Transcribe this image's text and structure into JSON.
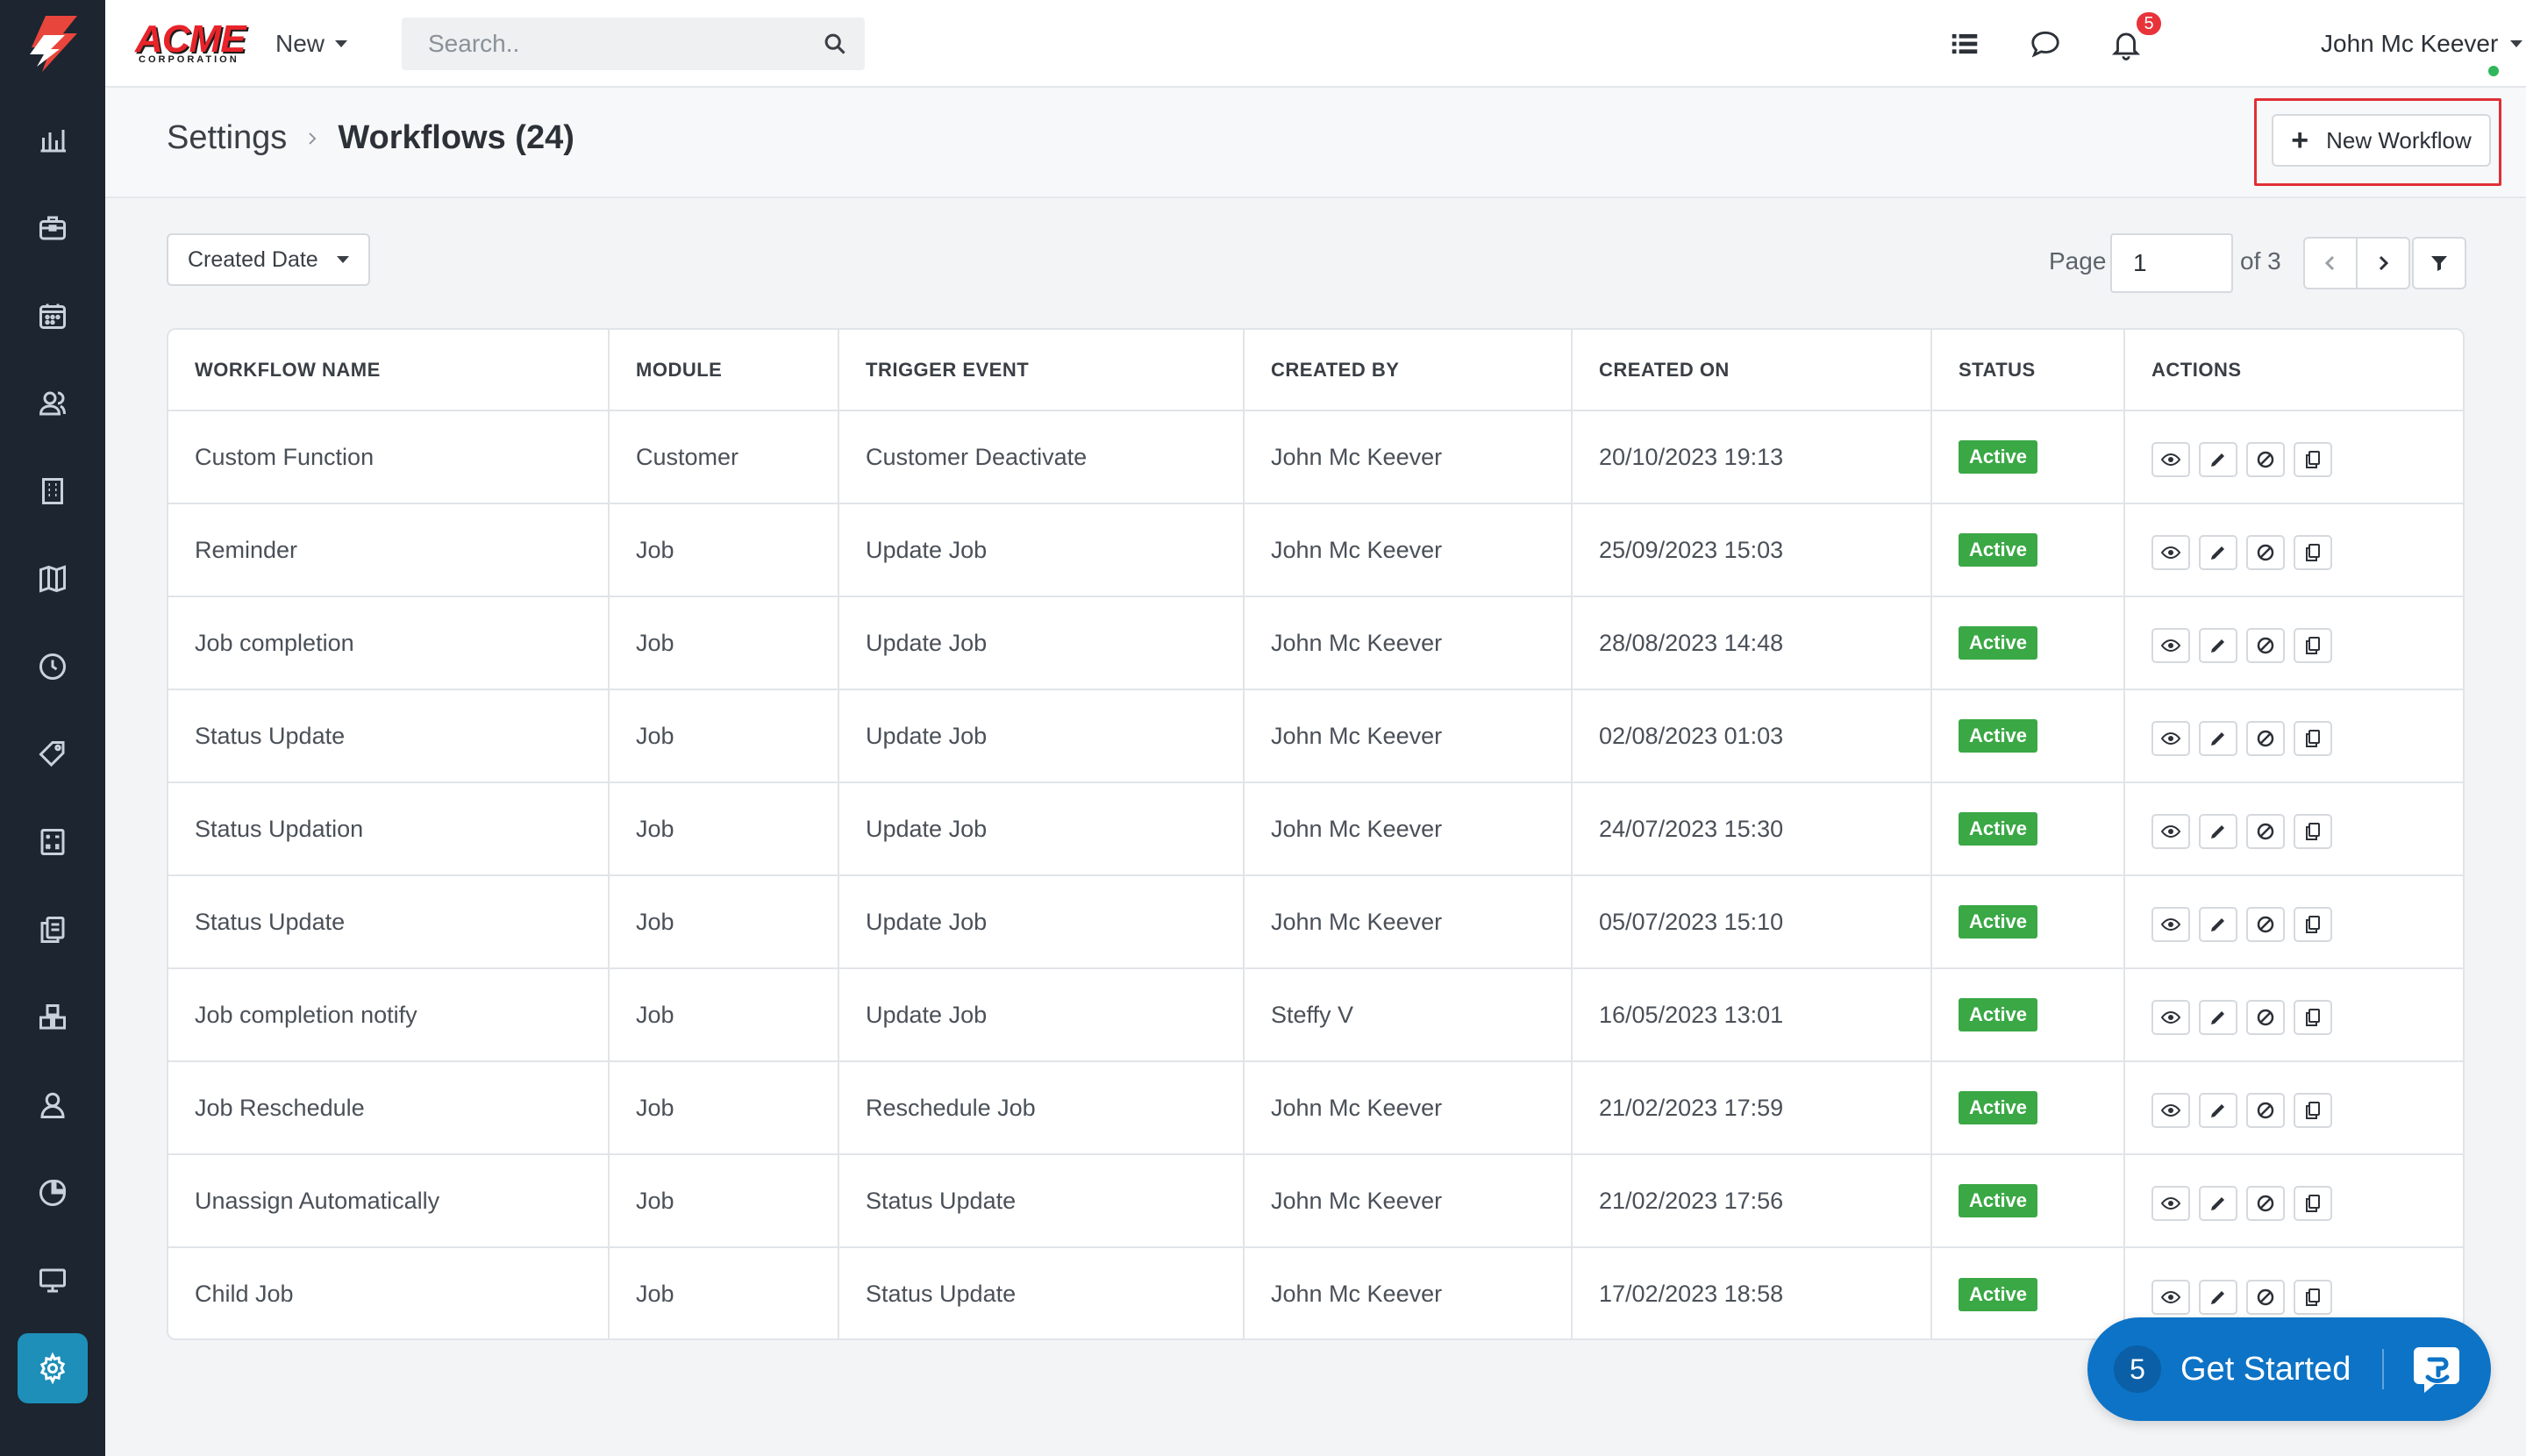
{
  "sidebar": {
    "items": [
      {
        "name": "reports",
        "icon": "bar-chart-icon"
      },
      {
        "name": "jobs",
        "icon": "briefcase-icon"
      },
      {
        "name": "calendar",
        "icon": "calendar-icon"
      },
      {
        "name": "contacts",
        "icon": "contacts-icon"
      },
      {
        "name": "buildings",
        "icon": "building-icon"
      },
      {
        "name": "map",
        "icon": "map-icon"
      },
      {
        "name": "timesheets",
        "icon": "clock-icon"
      },
      {
        "name": "pricing",
        "icon": "tag-icon"
      },
      {
        "name": "invoices",
        "icon": "calculator-icon"
      },
      {
        "name": "documents",
        "icon": "documents-icon"
      },
      {
        "name": "inventory",
        "icon": "boxes-icon"
      },
      {
        "name": "users",
        "icon": "user-icon"
      },
      {
        "name": "analytics",
        "icon": "pie-chart-icon"
      },
      {
        "name": "display",
        "icon": "monitor-icon"
      },
      {
        "name": "settings",
        "icon": "gear-icon",
        "active": true
      }
    ]
  },
  "topbar": {
    "brand_main": "ACME",
    "brand_sub": "CORPORATION",
    "new_label": "New",
    "search_placeholder": "Search..",
    "notification_count": "5",
    "user_name": "John Mc Keever"
  },
  "header": {
    "breadcrumb_root": "Settings",
    "title": "Workflows (24)",
    "new_workflow_label": "New Workflow"
  },
  "toolbar": {
    "sort_label": "Created Date",
    "page_label": "Page",
    "page_value": "1",
    "page_of": "of 3"
  },
  "table": {
    "columns": [
      "WORKFLOW NAME",
      "MODULE",
      "TRIGGER EVENT",
      "CREATED BY",
      "CREATED ON",
      "STATUS",
      "ACTIONS"
    ],
    "rows": [
      {
        "name": "Custom Function",
        "module": "Customer",
        "trigger": "Customer Deactivate",
        "created_by": "John Mc Keever",
        "created_on": "20/10/2023 19:13",
        "status": "Active"
      },
      {
        "name": "Reminder",
        "module": "Job",
        "trigger": "Update Job",
        "created_by": "John Mc Keever",
        "created_on": "25/09/2023 15:03",
        "status": "Active"
      },
      {
        "name": "Job completion",
        "module": "Job",
        "trigger": "Update Job",
        "created_by": "John Mc Keever",
        "created_on": "28/08/2023 14:48",
        "status": "Active"
      },
      {
        "name": "Status Update",
        "module": "Job",
        "trigger": "Update Job",
        "created_by": "John Mc Keever",
        "created_on": "02/08/2023 01:03",
        "status": "Active"
      },
      {
        "name": "Status Updation",
        "module": "Job",
        "trigger": "Update Job",
        "created_by": "John Mc Keever",
        "created_on": "24/07/2023 15:30",
        "status": "Active"
      },
      {
        "name": "Status Update",
        "module": "Job",
        "trigger": "Update Job",
        "created_by": "John Mc Keever",
        "created_on": "05/07/2023 15:10",
        "status": "Active"
      },
      {
        "name": "Job completion notify",
        "module": "Job",
        "trigger": "Update Job",
        "created_by": "Steffy V",
        "created_on": "16/05/2023 13:01",
        "status": "Active"
      },
      {
        "name": "Job Reschedule",
        "module": "Job",
        "trigger": "Reschedule Job",
        "created_by": "John Mc Keever",
        "created_on": "21/02/2023 17:59",
        "status": "Active"
      },
      {
        "name": "Unassign Automatically",
        "module": "Job",
        "trigger": "Status Update",
        "created_by": "John Mc Keever",
        "created_on": "21/02/2023 17:56",
        "status": "Active"
      },
      {
        "name": "Child Job",
        "module": "Job",
        "trigger": "Status Update",
        "created_by": "John Mc Keever",
        "created_on": "17/02/2023 18:58",
        "status": "Active"
      }
    ]
  },
  "get_started": {
    "count": "5",
    "label": "Get Started"
  },
  "colors": {
    "sidebar_bg": "#1c2530",
    "accent": "#1d8fb8",
    "status_active": "#3aa845",
    "highlight": "#e02f36",
    "get_started_bg": "#0d73c6"
  }
}
